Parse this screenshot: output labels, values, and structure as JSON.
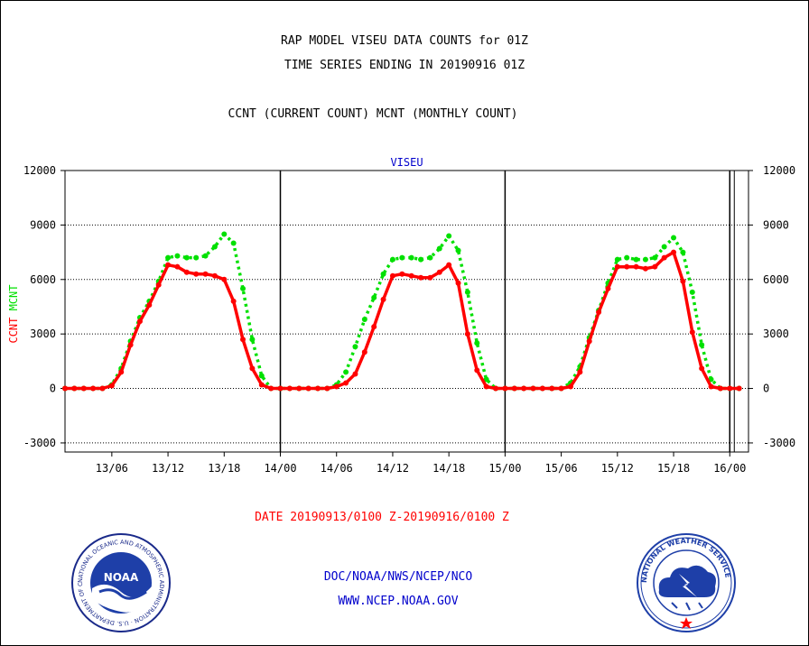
{
  "header": {
    "title_line1": "RAP MODEL VISEU DATA COUNTS for 01Z",
    "title_line2": "TIME SERIES ENDING IN 20190916 01Z",
    "subtitle": "CCNT (CURRENT COUNT) MCNT (MONTHLY COUNT)"
  },
  "chart_data": {
    "type": "line",
    "title": "VISEU",
    "ylabel_left_red": "CCNT",
    "ylabel_left_green": "MCNT",
    "xlabel": "DATE 20190913/0100 Z-20190916/0100 Z",
    "ylim": [
      -3500,
      12000
    ],
    "yticks": [
      -3000,
      0,
      3000,
      6000,
      9000,
      12000
    ],
    "ytick_labels": [
      "-3000",
      "0",
      "3000",
      "6000",
      "9000",
      "12000"
    ],
    "xlim": [
      0,
      73
    ],
    "xticks": [
      5,
      11,
      17,
      23,
      29,
      35,
      41,
      47,
      53,
      59,
      65,
      71
    ],
    "xtick_labels": [
      "13/06",
      "13/12",
      "13/18",
      "14/00",
      "14/06",
      "14/12",
      "14/18",
      "15/00",
      "15/06",
      "15/12",
      "15/18",
      "16/00"
    ],
    "day_boundaries": [
      23,
      47,
      71
    ],
    "grid": true,
    "series": [
      {
        "name": "CCNT",
        "color": "#ff0000",
        "style": "solid",
        "x": [
          0,
          1,
          2,
          3,
          4,
          5,
          6,
          7,
          8,
          9,
          10,
          11,
          12,
          13,
          14,
          15,
          16,
          17,
          18,
          19,
          20,
          21,
          22,
          23,
          24,
          25,
          26,
          27,
          28,
          29,
          30,
          31,
          32,
          33,
          34,
          35,
          36,
          37,
          38,
          39,
          40,
          41,
          42,
          43,
          44,
          45,
          46,
          47,
          48,
          49,
          50,
          51,
          52,
          53,
          54,
          55,
          56,
          57,
          58,
          59,
          60,
          61,
          62,
          63,
          64,
          65,
          66,
          67,
          68,
          69,
          70,
          71,
          72
        ],
        "values": [
          0,
          0,
          0,
          0,
          0,
          150,
          900,
          2400,
          3700,
          4600,
          5700,
          6800,
          6700,
          6400,
          6300,
          6300,
          6200,
          6000,
          4800,
          2700,
          1100,
          200,
          0,
          0,
          0,
          0,
          0,
          0,
          0,
          100,
          300,
          800,
          2000,
          3400,
          4900,
          6200,
          6300,
          6200,
          6100,
          6100,
          6400,
          6800,
          5800,
          3000,
          1000,
          100,
          0,
          0,
          0,
          0,
          0,
          0,
          0,
          0,
          100,
          900,
          2600,
          4200,
          5500,
          6700,
          6700,
          6700,
          6600,
          6700,
          7200,
          7500,
          5900,
          3100,
          1100,
          100,
          0,
          0,
          0
        ]
      },
      {
        "name": "MCNT",
        "color": "#00e000",
        "style": "dotted",
        "x": [
          0,
          1,
          2,
          3,
          4,
          5,
          6,
          7,
          8,
          9,
          10,
          11,
          12,
          13,
          14,
          15,
          16,
          17,
          18,
          19,
          20,
          21,
          22,
          23,
          24,
          25,
          26,
          27,
          28,
          29,
          30,
          31,
          32,
          33,
          34,
          35,
          36,
          37,
          38,
          39,
          40,
          41,
          42,
          43,
          44,
          45,
          46,
          47,
          48,
          49,
          50,
          51,
          52,
          53,
          54,
          55,
          56,
          57,
          58,
          59,
          60,
          61,
          62,
          63,
          64,
          65,
          66,
          67,
          68,
          69,
          70,
          71,
          72
        ],
        "values": [
          0,
          0,
          0,
          0,
          0,
          200,
          1100,
          2600,
          3900,
          4800,
          5900,
          7200,
          7300,
          7200,
          7200,
          7300,
          7800,
          8500,
          8000,
          5500,
          2700,
          700,
          0,
          0,
          0,
          0,
          0,
          0,
          0,
          200,
          900,
          2300,
          3800,
          5000,
          6300,
          7100,
          7200,
          7200,
          7100,
          7200,
          7700,
          8400,
          7600,
          5300,
          2500,
          500,
          0,
          0,
          0,
          0,
          0,
          0,
          0,
          0,
          300,
          1200,
          2800,
          4300,
          5800,
          7100,
          7200,
          7100,
          7100,
          7200,
          7800,
          8300,
          7500,
          5300,
          2400,
          500,
          0,
          0,
          0
        ]
      }
    ]
  },
  "footer": {
    "credit_line1": "DOC/NOAA/NWS/NCEP/NCO",
    "credit_line2": "WWW.NCEP.NOAA.GOV",
    "noaa_logo_text": "NOAA",
    "noaa_ring_text": "NATIONAL OCEANIC AND ATMOSPHERIC ADMINISTRATION · U.S. DEPARTMENT OF COMMERCE",
    "nws_ring_text": "NATIONAL WEATHER SERVICE"
  },
  "colors": {
    "red": "#ff0000",
    "green": "#00e000",
    "blue": "#0000cc",
    "navy": "#1a2a8a"
  }
}
